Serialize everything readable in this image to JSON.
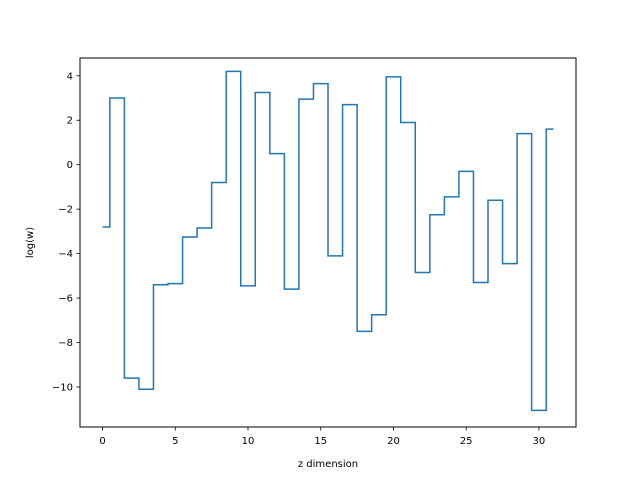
{
  "chart_data": {
    "type": "line",
    "drawstyle": "steps-mid",
    "xlabel": "z dimension",
    "ylabel": "log(w)",
    "xlim": [
      -1.55,
      32.55
    ],
    "ylim": [
      -11.8,
      4.8
    ],
    "xticks": [
      0,
      5,
      10,
      15,
      20,
      25,
      30
    ],
    "yticks": [
      -10,
      -8,
      -6,
      -4,
      -2,
      0,
      2,
      4
    ],
    "x": [
      0,
      1,
      2,
      3,
      4,
      5,
      6,
      7,
      8,
      9,
      10,
      11,
      12,
      13,
      14,
      15,
      16,
      17,
      18,
      19,
      20,
      21,
      22,
      23,
      24,
      25,
      26,
      27,
      28,
      29,
      30,
      31
    ],
    "series": [
      {
        "color": "#1f77b4",
        "values": [
          -2.8,
          3.0,
          -9.6,
          -10.1,
          -5.4,
          -5.35,
          -3.25,
          -2.85,
          -0.8,
          4.2,
          -5.45,
          3.25,
          0.5,
          -5.6,
          2.95,
          3.65,
          -4.1,
          2.7,
          -7.5,
          -6.75,
          3.95,
          1.9,
          -4.85,
          -2.25,
          -1.45,
          -0.3,
          -5.3,
          -1.6,
          -4.45,
          1.4,
          -11.05,
          1.6
        ]
      }
    ],
    "grid": false
  }
}
